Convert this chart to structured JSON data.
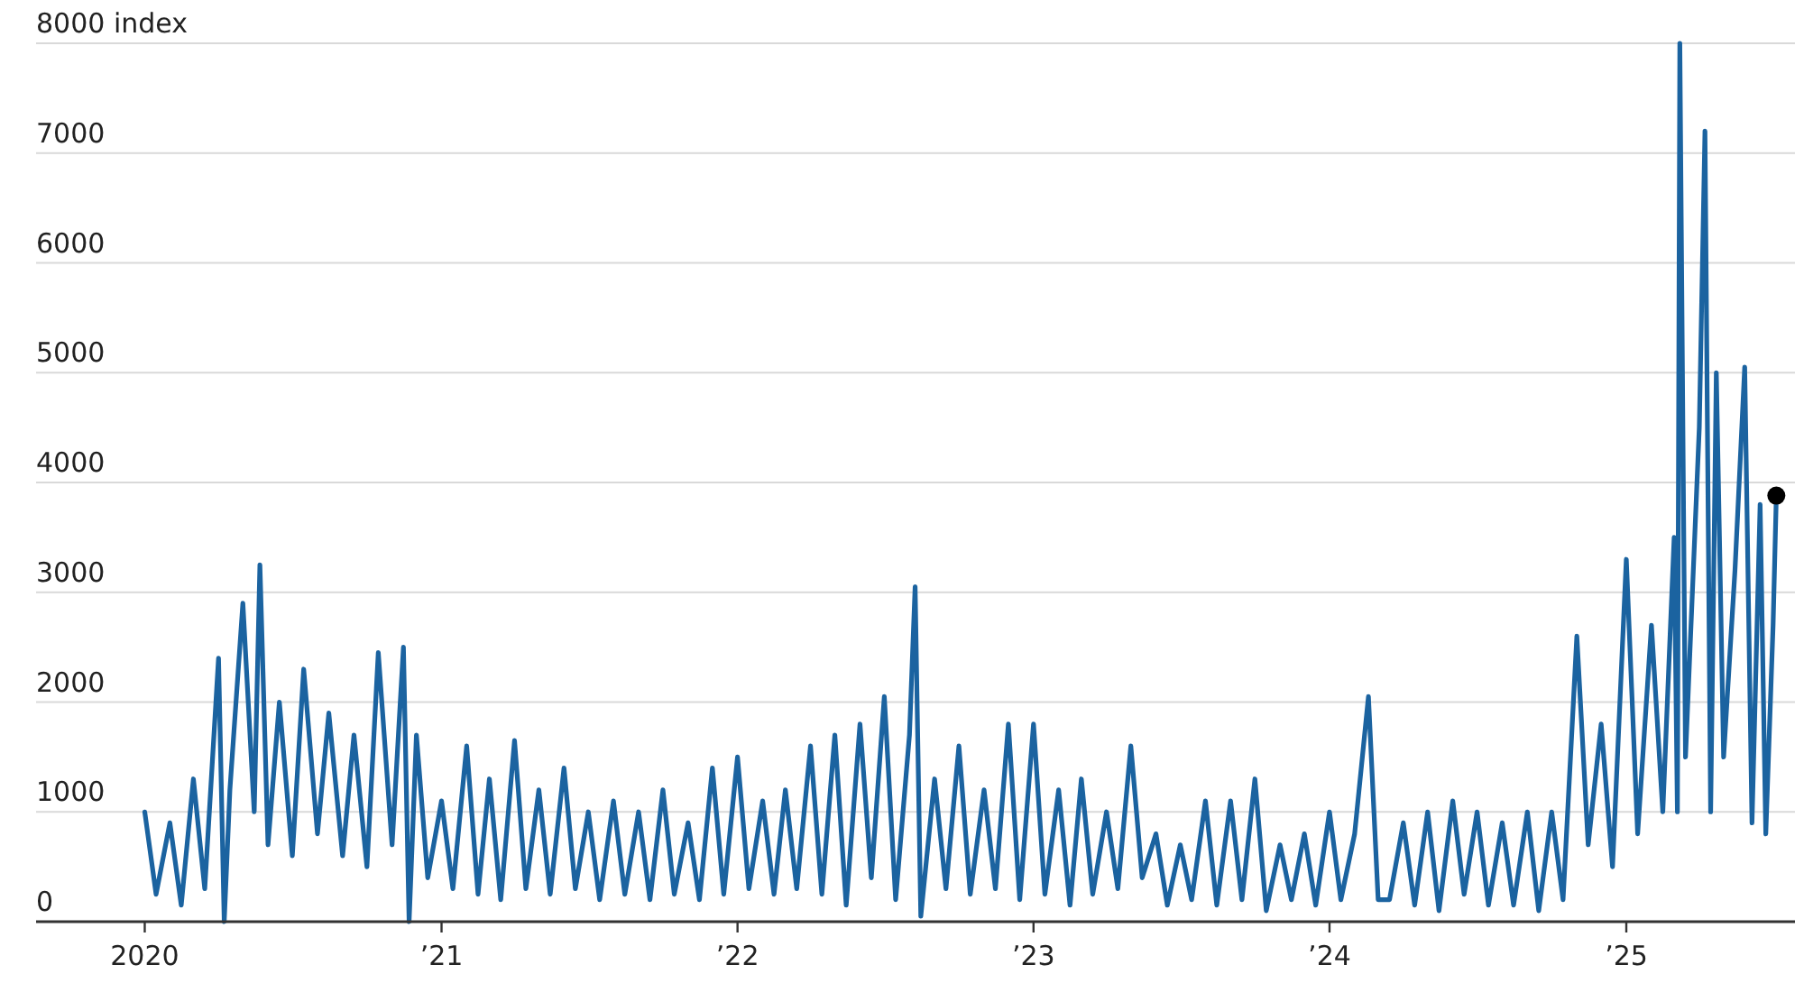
{
  "chart_data": {
    "type": "line",
    "x": [
      "2020-01-01",
      "2020-01-15",
      "2020-02-01",
      "2020-02-15",
      "2020-03-01",
      "2020-03-15",
      "2020-04-01",
      "2020-04-08",
      "2020-04-15",
      "2020-05-01",
      "2020-05-15",
      "2020-05-22",
      "2020-06-01",
      "2020-06-15",
      "2020-07-01",
      "2020-07-15",
      "2020-08-01",
      "2020-08-15",
      "2020-09-01",
      "2020-09-15",
      "2020-10-01",
      "2020-10-15",
      "2020-11-01",
      "2020-11-15",
      "2020-11-22",
      "2020-12-01",
      "2020-12-15",
      "2021-01-01",
      "2021-01-15",
      "2021-02-01",
      "2021-02-15",
      "2021-03-01",
      "2021-03-15",
      "2021-04-01",
      "2021-04-15",
      "2021-05-01",
      "2021-05-15",
      "2021-06-01",
      "2021-06-15",
      "2021-07-01",
      "2021-07-15",
      "2021-08-01",
      "2021-08-15",
      "2021-09-01",
      "2021-09-15",
      "2021-10-01",
      "2021-10-15",
      "2021-11-01",
      "2021-11-15",
      "2021-12-01",
      "2021-12-15",
      "2022-01-01",
      "2022-01-15",
      "2022-02-01",
      "2022-02-15",
      "2022-03-01",
      "2022-03-15",
      "2022-04-01",
      "2022-04-15",
      "2022-05-01",
      "2022-05-15",
      "2022-06-01",
      "2022-06-15",
      "2022-07-01",
      "2022-07-15",
      "2022-08-01",
      "2022-08-08",
      "2022-08-15",
      "2022-09-01",
      "2022-09-15",
      "2022-10-01",
      "2022-10-15",
      "2022-11-01",
      "2022-11-15",
      "2022-12-01",
      "2022-12-15",
      "2023-01-01",
      "2023-01-15",
      "2023-02-01",
      "2023-02-15",
      "2023-03-01",
      "2023-03-15",
      "2023-04-01",
      "2023-04-15",
      "2023-05-01",
      "2023-05-15",
      "2023-06-01",
      "2023-06-15",
      "2023-07-01",
      "2023-07-15",
      "2023-08-01",
      "2023-08-15",
      "2023-09-01",
      "2023-09-15",
      "2023-10-01",
      "2023-10-15",
      "2023-11-01",
      "2023-11-15",
      "2023-12-01",
      "2023-12-15",
      "2024-01-01",
      "2024-01-15",
      "2024-02-01",
      "2024-02-18",
      "2024-03-01",
      "2024-03-15",
      "2024-04-01",
      "2024-04-15",
      "2024-05-01",
      "2024-05-15",
      "2024-06-01",
      "2024-06-15",
      "2024-07-01",
      "2024-07-15",
      "2024-08-01",
      "2024-08-15",
      "2024-09-01",
      "2024-09-15",
      "2024-10-01",
      "2024-10-15",
      "2024-11-01",
      "2024-11-15",
      "2024-12-01",
      "2024-12-15",
      "2025-01-01",
      "2025-01-15",
      "2025-02-01",
      "2025-02-15",
      "2025-03-01",
      "2025-03-05",
      "2025-03-08",
      "2025-03-15",
      "2025-04-01",
      "2025-04-08",
      "2025-04-15",
      "2025-04-22",
      "2025-05-01",
      "2025-05-15",
      "2025-05-27",
      "2025-06-05",
      "2025-06-15",
      "2025-06-22",
      "2025-07-01",
      "2025-07-05"
    ],
    "series": [
      {
        "color": "#1b63a0",
        "values": [
          1000,
          250,
          900,
          150,
          1300,
          300,
          2400,
          0,
          1200,
          2900,
          1000,
          3250,
          700,
          2000,
          600,
          2300,
          800,
          1900,
          600,
          1700,
          500,
          2450,
          700,
          2500,
          0,
          1700,
          400,
          1100,
          300,
          1600,
          250,
          1300,
          200,
          1650,
          300,
          1200,
          250,
          1400,
          300,
          1000,
          200,
          1100,
          250,
          1000,
          200,
          1200,
          250,
          900,
          200,
          1400,
          250,
          1500,
          300,
          1100,
          250,
          1200,
          300,
          1600,
          250,
          1700,
          150,
          1800,
          400,
          2050,
          200,
          1700,
          3050,
          50,
          1300,
          300,
          1600,
          250,
          1200,
          300,
          1800,
          200,
          1800,
          250,
          1200,
          150,
          1300,
          250,
          1000,
          300,
          1600,
          400,
          800,
          150,
          700,
          200,
          1100,
          150,
          1100,
          200,
          1300,
          100,
          700,
          200,
          800,
          150,
          1000,
          200,
          800,
          2050,
          200,
          200,
          900,
          150,
          1000,
          100,
          1100,
          250,
          1000,
          150,
          900,
          150,
          1000,
          100,
          1000,
          200,
          2600,
          700,
          1800,
          500,
          3300,
          800,
          2700,
          1000,
          3500,
          1000,
          8000,
          1500,
          4500,
          7200,
          1000,
          5000,
          1500,
          3200,
          5050,
          900,
          3800,
          800,
          2700,
          3880
        ]
      },
      {
        "type": "scatter",
        "x": [
          "2025-07-05"
        ],
        "color": "#000000",
        "values": [
          3880
        ]
      }
    ],
    "xlim": [
      "2019-08-20",
      "2025-07-28"
    ],
    "xticks": [
      {
        "value": "2020-01-01",
        "label": "2020"
      },
      {
        "value": "2021-01-01",
        "label": "’21"
      },
      {
        "value": "2022-01-01",
        "label": "’22"
      },
      {
        "value": "2023-01-01",
        "label": "’23"
      },
      {
        "value": "2024-01-01",
        "label": "’24"
      },
      {
        "value": "2025-01-01",
        "label": "’25"
      }
    ],
    "ylim": [
      0,
      8000
    ],
    "yticks": [
      0,
      1000,
      2000,
      3000,
      4000,
      5000,
      6000,
      7000,
      {
        "value": 8000,
        "label": "8000 index"
      }
    ],
    "grid": "y"
  }
}
